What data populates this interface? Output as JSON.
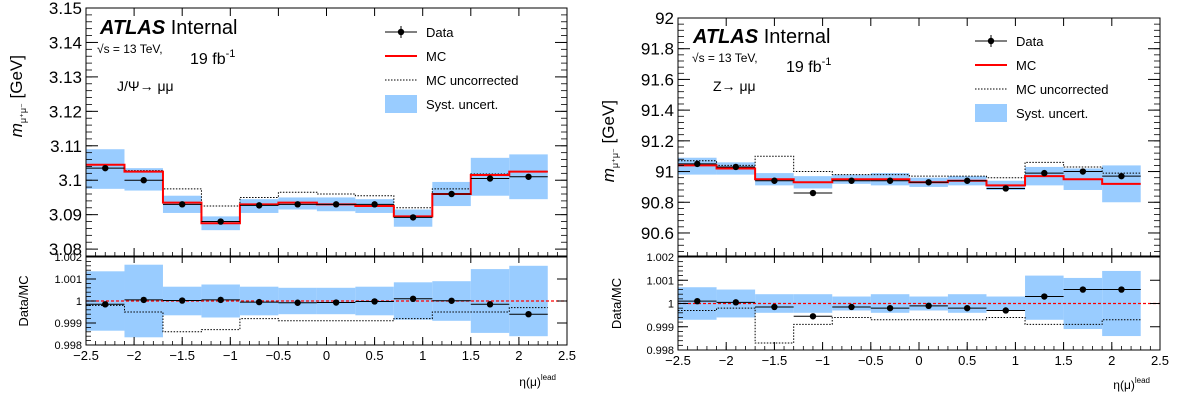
{
  "chart_data": [
    {
      "type": "line",
      "label": "ATLAS",
      "label_status": "Internal",
      "energy": "√s = 13 TeV,",
      "luminosity": "19 fb",
      "lumi_exponent": "-1",
      "process": "J/Ψ→ μμ",
      "ylabel": "m_{μ⁺μ⁻} [GeV]",
      "ratio_ylabel": "Data/MC",
      "xlabel": "η(μ)",
      "xlabel_sup": "lead",
      "xlim": [
        -2.5,
        2.5
      ],
      "ylim": [
        3.078,
        3.15
      ],
      "ratio_ylim": [
        0.998,
        1.002
      ],
      "x_ticks": [
        "−2.5",
        "−2",
        "−1.5",
        "−1",
        "−0.5",
        "0",
        "0.5",
        "1",
        "1.5",
        "2",
        "2.5"
      ],
      "y_ticks": [
        "3.08",
        "3.09",
        "3.1",
        "3.11",
        "3.12",
        "3.13",
        "3.14",
        "3.15"
      ],
      "ratio_ticks": [
        "0.998",
        "0.999",
        "1",
        "1.001",
        "1.002"
      ],
      "legend": [
        "Data",
        "MC",
        "MC uncorrected",
        "Syst. uncert."
      ],
      "bin_edges": [
        -2.5,
        -2.1,
        -1.7,
        -1.3,
        -0.9,
        -0.5,
        -0.1,
        0.3,
        0.7,
        1.1,
        1.5,
        1.9,
        2.3
      ],
      "data_x": [
        -2.3,
        -1.9,
        -1.5,
        -1.1,
        -0.7,
        -0.3,
        0.1,
        0.5,
        0.9,
        1.3,
        1.7,
        2.1
      ],
      "data_y": [
        3.1035,
        3.1,
        3.093,
        3.088,
        3.0927,
        3.093,
        3.093,
        3.093,
        3.0892,
        3.096,
        3.1005,
        3.101
      ],
      "mc": [
        3.1045,
        3.1025,
        3.0935,
        3.0875,
        3.093,
        3.0935,
        3.093,
        3.0925,
        3.0895,
        3.096,
        3.1015,
        3.1025
      ],
      "mc_uncorrected": [
        3.1045,
        3.1028,
        3.0975,
        3.0925,
        3.095,
        3.0965,
        3.096,
        3.0955,
        3.092,
        3.0975,
        3.1018,
        3.1025
      ],
      "syst_low": [
        3.0975,
        3.097,
        3.0905,
        3.0855,
        3.0905,
        3.0915,
        3.091,
        3.0905,
        3.0865,
        3.0925,
        3.0955,
        3.0945
      ],
      "syst_high": [
        3.109,
        3.1035,
        3.0955,
        3.0895,
        3.0945,
        3.095,
        3.095,
        3.0945,
        3.0915,
        3.0995,
        3.1065,
        3.1075
      ],
      "ratio_data": [
        0.99985,
        1.00005,
        1.00002,
        1.00005,
        0.99995,
        0.99992,
        0.99993,
        0.99998,
        1.0001,
        1.00001,
        0.99985,
        0.9994
      ],
      "ratio_err": [
        0.00012,
        0.00012,
        5e-05,
        0.00014,
        8e-05,
        6e-05,
        6e-05,
        8e-05,
        0.00013,
        0.00012,
        0.00014,
        0.00013
      ],
      "ratio_uncorr": [
        0.9998,
        0.9995,
        0.9986,
        0.9987,
        0.9992,
        0.9991,
        0.9991,
        0.9991,
        0.9992,
        0.9995,
        0.9995,
        0.9997
      ],
      "ratio_syst_low": [
        0.99865,
        0.99835,
        0.99935,
        0.99925,
        0.99935,
        0.9994,
        0.9994,
        0.99935,
        0.99915,
        0.9991,
        0.99855,
        0.9984
      ],
      "ratio_syst_high": [
        1.00135,
        1.00165,
        1.00065,
        1.00075,
        1.00065,
        1.0006,
        1.0006,
        1.00065,
        1.00085,
        1.0009,
        1.00145,
        1.0016
      ],
      "colors": {
        "mc": "#ff0000",
        "syst": "#99ccff",
        "data": "#000000",
        "ref_line": "#ff0000"
      }
    },
    {
      "type": "line",
      "label": "ATLAS",
      "label_status": "Internal",
      "energy": "√s = 13 TeV,",
      "luminosity": "19 fb",
      "lumi_exponent": "-1",
      "process": "Z→ μμ",
      "ylabel": "m_{μ⁺μ⁻} [GeV]",
      "ratio_ylabel": "Data/MC",
      "xlabel": "η(μ)",
      "xlabel_sup": "lead",
      "xlim": [
        -2.5,
        2.5
      ],
      "ylim": [
        90.45,
        92.0
      ],
      "ratio_ylim": [
        0.998,
        1.002
      ],
      "x_ticks": [
        "−2.5",
        "−2",
        "−1.5",
        "−1",
        "−0.5",
        "0",
        "0.5",
        "1",
        "1.5",
        "2",
        "2.5"
      ],
      "y_ticks": [
        "90.6",
        "90.8",
        "91",
        "91.2",
        "91.4",
        "91.6",
        "91.8",
        "92"
      ],
      "ratio_ticks": [
        "0.998",
        "0.999",
        "1",
        "1.001",
        "1.002"
      ],
      "legend": [
        "Data",
        "MC",
        "MC uncorrected",
        "Syst. uncert."
      ],
      "bin_edges": [
        -2.5,
        -2.1,
        -1.7,
        -1.3,
        -0.9,
        -0.5,
        -0.1,
        0.3,
        0.7,
        1.1,
        1.5,
        1.9,
        2.3
      ],
      "data_x": [
        -2.3,
        -1.9,
        -1.5,
        -1.1,
        -0.7,
        -0.3,
        0.1,
        0.5,
        0.9,
        1.3,
        1.7,
        2.1
      ],
      "data_y": [
        91.05,
        91.03,
        90.94,
        90.86,
        90.94,
        90.94,
        90.93,
        90.94,
        90.89,
        90.99,
        91.0,
        90.97
      ],
      "mc": [
        91.04,
        91.02,
        90.95,
        90.93,
        90.95,
        90.95,
        90.93,
        90.94,
        90.91,
        90.97,
        90.95,
        90.92
      ],
      "mc_uncorrected": [
        91.07,
        91.04,
        91.1,
        91.0,
        90.98,
        90.98,
        90.97,
        90.97,
        90.96,
        91.06,
        91.03,
        90.99
      ],
      "syst_low": [
        90.98,
        90.98,
        90.91,
        90.89,
        90.92,
        90.91,
        90.9,
        90.91,
        90.88,
        90.91,
        90.88,
        90.8
      ],
      "syst_high": [
        91.09,
        91.06,
        90.99,
        90.97,
        90.98,
        90.99,
        90.96,
        90.97,
        90.94,
        91.03,
        91.02,
        91.04
      ],
      "ratio_data": [
        1.0001,
        1.00005,
        0.99985,
        0.99945,
        0.99985,
        0.9998,
        0.9999,
        0.9998,
        0.9997,
        1.0003,
        1.0006,
        1.0006
      ],
      "ratio_err": [
        0.0001,
        0.0001,
        0.0001,
        0.00012,
        8e-05,
        8e-05,
        8e-05,
        8e-05,
        0.0001,
        0.0001,
        0.0001,
        0.0001
      ],
      "ratio_uncorr": [
        0.9997,
        0.9998,
        0.9983,
        0.9991,
        0.9994,
        0.9993,
        0.9993,
        0.9993,
        0.9994,
        0.9991,
        0.9991,
        0.9993
      ],
      "ratio_syst_low": [
        0.9993,
        0.9994,
        0.9996,
        0.9996,
        0.9997,
        0.9996,
        0.9997,
        0.9996,
        0.9997,
        0.9993,
        0.9989,
        0.9986
      ],
      "ratio_syst_high": [
        1.0007,
        1.0006,
        1.0004,
        1.0004,
        1.0003,
        1.0004,
        1.0003,
        1.0004,
        1.0003,
        1.0012,
        1.0011,
        1.0014
      ],
      "colors": {
        "mc": "#ff0000",
        "syst": "#99ccff",
        "data": "#000000",
        "ref_line": "#ff0000"
      }
    }
  ]
}
